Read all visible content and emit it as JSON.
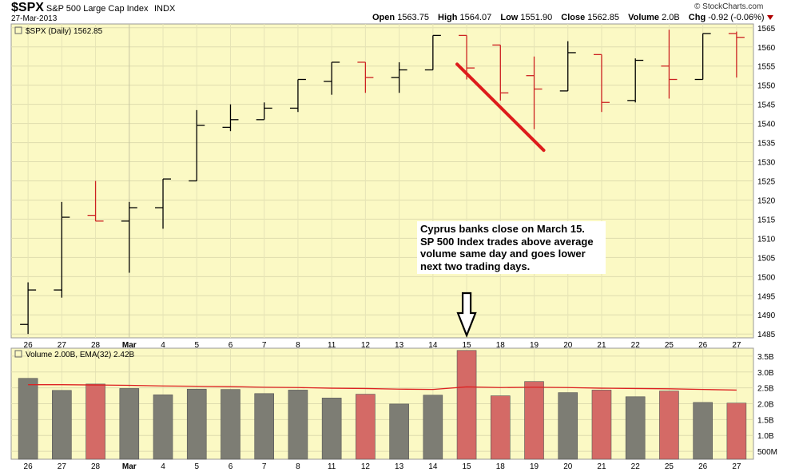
{
  "header": {
    "symbol": "$SPX",
    "name": "S&P 500 Large Cap Index",
    "exchange": "INDX",
    "date": "27-Mar-2013",
    "logo": "© StockCharts.com",
    "open_label": "Open",
    "open": "1563.75",
    "high_label": "High",
    "high": "1564.07",
    "low_label": "Low",
    "low": "1551.90",
    "close_label": "Close",
    "close": "1562.85",
    "volume_label": "Volume",
    "volume": "2.0B",
    "chg_label": "Chg",
    "chg": "-0.92 (-0.06%)"
  },
  "annotation": {
    "lines": [
      "Cyprus banks close on March 15.",
      "SP 500 Index trades above average",
      "volume same day and goes lower",
      "next two trading days."
    ]
  },
  "colors": {
    "panel_bg": "#fbf9c4",
    "up_bar": "#000000",
    "down_bar": "#cc2222",
    "vol_up": "#7d7d74",
    "vol_down": "#d46a66",
    "ema": "#dd2222",
    "trend_line": "#dd1c1c"
  },
  "chart_data": [
    {
      "type": "ohlc",
      "legend": "$SPX (Daily) 1562.85",
      "categories": [
        "26",
        "27",
        "28",
        "Mar",
        "4",
        "5",
        "6",
        "7",
        "8",
        "11",
        "12",
        "13",
        "14",
        "15",
        "18",
        "19",
        "20",
        "21",
        "22",
        "25",
        "26",
        "27"
      ],
      "open": [
        1487.5,
        1496.5,
        1516,
        1514.5,
        1518,
        1525,
        1539,
        1541,
        1544,
        1551,
        1556,
        1552,
        1554,
        1563,
        1560.5,
        1552.5,
        1548.5,
        1558,
        1546,
        1555,
        1551.5,
        1563.5
      ],
      "high": [
        1498.5,
        1519.5,
        1525,
        1519.5,
        1525.5,
        1543.5,
        1545,
        1545.5,
        1551.5,
        1556,
        1556,
        1556,
        1563,
        1563,
        1560.5,
        1557.5,
        1561.5,
        1558,
        1557,
        1564.5,
        1563.5,
        1564
      ],
      "low": [
        1485,
        1494.5,
        1514.5,
        1501,
        1512.5,
        1525,
        1538,
        1541,
        1543,
        1547.5,
        1548,
        1548,
        1554,
        1551.5,
        1546,
        1538.5,
        1548.5,
        1543,
        1545.5,
        1546.5,
        1551.5,
        1552
      ],
      "close": [
        1496.5,
        1515.5,
        1514.5,
        1518,
        1525.5,
        1539.5,
        1541,
        1544,
        1551.5,
        1556,
        1552,
        1554,
        1563,
        1554.5,
        1548,
        1549,
        1558.5,
        1545.5,
        1556.5,
        1551.5,
        1563.5,
        1562.5
      ],
      "direction": [
        "up",
        "up",
        "down",
        "up",
        "up",
        "up",
        "up",
        "up",
        "up",
        "up",
        "down",
        "up",
        "up",
        "down",
        "down",
        "down",
        "up",
        "down",
        "up",
        "down",
        "up",
        "down"
      ],
      "ylim": [
        1484,
        1566
      ],
      "y_ticks": [
        1485,
        1490,
        1495,
        1500,
        1505,
        1510,
        1515,
        1520,
        1525,
        1530,
        1535,
        1540,
        1545,
        1550,
        1555,
        1560,
        1565
      ],
      "trend_line": {
        "from": {
          "x": "15",
          "y": 1555.5
        },
        "to": {
          "x": "19",
          "y": 1533
        }
      },
      "grid": true
    },
    {
      "type": "bar",
      "legend": "Volume 2.00B, EMA(32) 2.42B",
      "categories": [
        "26",
        "27",
        "28",
        "Mar",
        "4",
        "5",
        "6",
        "7",
        "8",
        "11",
        "12",
        "13",
        "14",
        "15",
        "18",
        "19",
        "20",
        "21",
        "22",
        "25",
        "26",
        "27"
      ],
      "values": [
        2.8,
        2.42,
        2.62,
        2.48,
        2.28,
        2.46,
        2.45,
        2.32,
        2.43,
        2.18,
        2.3,
        1.99,
        2.27,
        3.68,
        2.25,
        2.7,
        2.35,
        2.43,
        2.22,
        2.4,
        2.04,
        2.02
      ],
      "ema": [
        2.6,
        2.6,
        2.59,
        2.58,
        2.56,
        2.55,
        2.54,
        2.52,
        2.51,
        2.49,
        2.48,
        2.46,
        2.45,
        2.53,
        2.51,
        2.52,
        2.51,
        2.49,
        2.48,
        2.47,
        2.45,
        2.43
      ],
      "colors_by_direction": [
        "up",
        "up",
        "down",
        "up",
        "up",
        "up",
        "up",
        "up",
        "up",
        "up",
        "down",
        "up",
        "up",
        "down",
        "down",
        "down",
        "up",
        "down",
        "up",
        "down",
        "up",
        "down"
      ],
      "ylim": [
        0.25,
        3.75
      ],
      "y_ticks": [
        0.5,
        1.0,
        1.5,
        2.0,
        2.5,
        3.0,
        3.5
      ],
      "y_tick_labels": [
        "500M",
        "1.0B",
        "1.5B",
        "2.0B",
        "2.5B",
        "3.0B",
        "3.5B"
      ],
      "grid": true
    }
  ]
}
